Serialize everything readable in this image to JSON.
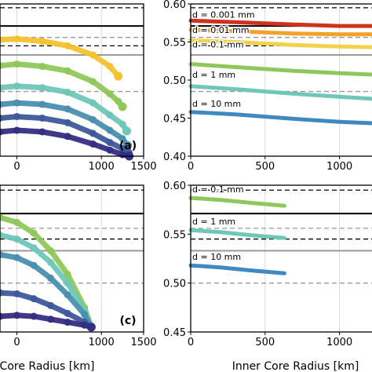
{
  "chart_data": [
    {
      "panel": "a",
      "type": "scatter",
      "panel_label": "(a)",
      "xlabel": "",
      "ylabel": "",
      "xlim": [
        -200,
        1500
      ],
      "ylim": [
        0.4,
        0.6
      ],
      "xticks": [
        "0",
        "1000",
        "1500"
      ],
      "yticks": [],
      "grid": true,
      "ref_lines": [
        {
          "y": 0.595,
          "style": "dashed",
          "color": "#000000"
        },
        {
          "y": 0.571,
          "style": "solid",
          "color": "#000000"
        },
        {
          "y": 0.556,
          "style": "dashed",
          "color": "#999999"
        },
        {
          "y": 0.545,
          "style": "dashed",
          "color": "#000000"
        },
        {
          "y": 0.533,
          "style": "solid",
          "color": "#999999"
        },
        {
          "y": 0.485,
          "style": "dashed",
          "color": "#999999"
        }
      ],
      "series": [
        {
          "color": "#f2c230",
          "points": [
            [
              -200,
              0.553
            ],
            [
              0,
              0.554
            ],
            [
              300,
              0.551
            ],
            [
              600,
              0.545
            ],
            [
              900,
              0.533
            ],
            [
              1100,
              0.518
            ],
            [
              1200,
              0.505
            ]
          ]
        },
        {
          "color": "#8fc85a",
          "points": [
            [
              -200,
              0.519
            ],
            [
              0,
              0.521
            ],
            [
              300,
              0.518
            ],
            [
              600,
              0.512
            ],
            [
              900,
              0.498
            ],
            [
              1100,
              0.482
            ],
            [
              1200,
              0.472
            ],
            [
              1250,
              0.465
            ]
          ]
        },
        {
          "color": "#6fc7b8",
          "points": [
            [
              -200,
              0.49
            ],
            [
              0,
              0.492
            ],
            [
              300,
              0.49
            ],
            [
              600,
              0.484
            ],
            [
              900,
              0.47
            ],
            [
              1100,
              0.454
            ],
            [
              1250,
              0.442
            ],
            [
              1300,
              0.433
            ]
          ]
        },
        {
          "color": "#4a8fb0",
          "points": [
            [
              -200,
              0.468
            ],
            [
              0,
              0.47
            ],
            [
              300,
              0.468
            ],
            [
              600,
              0.462
            ],
            [
              900,
              0.448
            ],
            [
              1100,
              0.434
            ],
            [
              1250,
              0.423
            ],
            [
              1310,
              0.414
            ]
          ]
        },
        {
          "color": "#3e5a9c",
          "points": [
            [
              -200,
              0.45
            ],
            [
              0,
              0.452
            ],
            [
              300,
              0.45
            ],
            [
              600,
              0.444
            ],
            [
              900,
              0.43
            ],
            [
              1100,
              0.418
            ],
            [
              1250,
              0.41
            ],
            [
              1320,
              0.404
            ]
          ]
        },
        {
          "color": "#352e82",
          "points": [
            [
              -200,
              0.432
            ],
            [
              0,
              0.434
            ],
            [
              300,
              0.432
            ],
            [
              600,
              0.426
            ],
            [
              900,
              0.416
            ],
            [
              1100,
              0.408
            ],
            [
              1250,
              0.402
            ],
            [
              1330,
              0.4
            ]
          ]
        }
      ]
    },
    {
      "panel": "b",
      "type": "line",
      "panel_label": "",
      "xlabel": "",
      "ylabel": "",
      "xlim": [
        0,
        1250
      ],
      "ylim": [
        0.4,
        0.6
      ],
      "xticks": [
        "0",
        "500",
        "1000"
      ],
      "yticks": [
        "0.60",
        "0.55",
        "0.50",
        "0.45",
        "0.40"
      ],
      "grid": true,
      "ref_lines": [
        {
          "y": 0.595,
          "style": "dashed",
          "color": "#000000"
        },
        {
          "y": 0.571,
          "style": "solid",
          "color": "#000000"
        },
        {
          "y": 0.556,
          "style": "dashed",
          "color": "#999999"
        },
        {
          "y": 0.545,
          "style": "dashed",
          "color": "#000000"
        },
        {
          "y": 0.533,
          "style": "solid",
          "color": "#999999"
        },
        {
          "y": 0.485,
          "style": "dashed",
          "color": "#999999"
        }
      ],
      "annotations": [
        "d = 0.001 mm",
        "d = 0.01 mm",
        "d = 0.1 mm",
        "d = 1 mm",
        "d = 10 mm"
      ],
      "series": [
        {
          "color": "#d0321e",
          "points": [
            [
              0,
              0.578
            ],
            [
              300,
              0.576
            ],
            [
              700,
              0.573
            ],
            [
              1000,
              0.571
            ],
            [
              1250,
              0.571
            ]
          ]
        },
        {
          "color": "#f0a22a",
          "points": [
            [
              0,
              0.566
            ],
            [
              300,
              0.564
            ],
            [
              700,
              0.561
            ],
            [
              1000,
              0.56
            ],
            [
              1250,
              0.56
            ]
          ]
        },
        {
          "color": "#f2d24a",
          "points": [
            [
              0,
              0.552
            ],
            [
              300,
              0.55
            ],
            [
              700,
              0.546
            ],
            [
              1000,
              0.544
            ],
            [
              1250,
              0.543
            ]
          ]
        },
        {
          "color": "#8fc85a",
          "points": [
            [
              0,
              0.521
            ],
            [
              300,
              0.517
            ],
            [
              700,
              0.512
            ],
            [
              1000,
              0.509
            ],
            [
              1250,
              0.507
            ]
          ]
        },
        {
          "color": "#6fc7b8",
          "points": [
            [
              0,
              0.492
            ],
            [
              300,
              0.488
            ],
            [
              700,
              0.482
            ],
            [
              1000,
              0.478
            ],
            [
              1250,
              0.475
            ]
          ]
        },
        {
          "color": "#3e8ac0",
          "points": [
            [
              0,
              0.458
            ],
            [
              300,
              0.455
            ],
            [
              700,
              0.449
            ],
            [
              1000,
              0.445
            ],
            [
              1250,
              0.443
            ]
          ]
        }
      ]
    },
    {
      "panel": "c",
      "type": "scatter",
      "panel_label": "(c)",
      "xlabel": "Core Radius [km]",
      "ylabel": "",
      "xlim": [
        -200,
        1500
      ],
      "ylim": [
        0.45,
        0.6
      ],
      "xticks": [
        "0",
        "1000",
        "1500"
      ],
      "yticks": [],
      "grid": true,
      "ref_lines": [
        {
          "y": 0.595,
          "style": "dashed",
          "color": "#000000"
        },
        {
          "y": 0.571,
          "style": "solid",
          "color": "#000000"
        },
        {
          "y": 0.556,
          "style": "dashed",
          "color": "#999999"
        },
        {
          "y": 0.545,
          "style": "dashed",
          "color": "#000000"
        },
        {
          "y": 0.533,
          "style": "solid",
          "color": "#999999"
        },
        {
          "y": 0.5,
          "style": "dashed",
          "color": "#999999"
        }
      ],
      "series": [
        {
          "color": "#8fc85a",
          "points": [
            [
              -200,
              0.567
            ],
            [
              0,
              0.562
            ],
            [
              200,
              0.551
            ],
            [
              400,
              0.533
            ],
            [
              600,
              0.509
            ],
            [
              800,
              0.475
            ],
            [
              880,
              0.455
            ]
          ]
        },
        {
          "color": "#6fc7b8",
          "points": [
            [
              -200,
              0.549
            ],
            [
              0,
              0.545
            ],
            [
              200,
              0.536
            ],
            [
              400,
              0.521
            ],
            [
              600,
              0.5
            ],
            [
              800,
              0.472
            ],
            [
              880,
              0.455
            ]
          ]
        },
        {
          "color": "#4a8fb0",
          "points": [
            [
              -200,
              0.529
            ],
            [
              0,
              0.526
            ],
            [
              200,
              0.518
            ],
            [
              400,
              0.505
            ],
            [
              600,
              0.488
            ],
            [
              800,
              0.468
            ],
            [
              880,
              0.455
            ]
          ]
        },
        {
          "color": "#3e5a9c",
          "points": [
            [
              -200,
              0.49
            ],
            [
              0,
              0.489
            ],
            [
              200,
              0.484
            ],
            [
              400,
              0.477
            ],
            [
              600,
              0.469
            ],
            [
              800,
              0.46
            ],
            [
              880,
              0.455
            ]
          ]
        },
        {
          "color": "#352e82",
          "points": [
            [
              -200,
              0.466
            ],
            [
              0,
              0.467
            ],
            [
              200,
              0.466
            ],
            [
              400,
              0.463
            ],
            [
              600,
              0.46
            ],
            [
              800,
              0.457
            ],
            [
              880,
              0.455
            ]
          ]
        }
      ]
    },
    {
      "panel": "d",
      "type": "line",
      "panel_label": "",
      "xlabel": "Inner Core Radius [km]",
      "ylabel": "",
      "xlim": [
        0,
        1250
      ],
      "ylim": [
        0.45,
        0.6
      ],
      "xticks": [
        "0",
        "500",
        "1000"
      ],
      "yticks": [
        "0.60",
        "0.55",
        "0.50",
        "0.45"
      ],
      "grid": true,
      "ref_lines": [
        {
          "y": 0.595,
          "style": "dashed",
          "color": "#000000"
        },
        {
          "y": 0.571,
          "style": "solid",
          "color": "#000000"
        },
        {
          "y": 0.556,
          "style": "dashed",
          "color": "#999999"
        },
        {
          "y": 0.545,
          "style": "dashed",
          "color": "#000000"
        },
        {
          "y": 0.533,
          "style": "solid",
          "color": "#999999"
        },
        {
          "y": 0.5,
          "style": "dashed",
          "color": "#999999"
        }
      ],
      "annotations": [
        "d = 0.1 mm",
        "d = 1 mm",
        "d = 10 mm"
      ],
      "series": [
        {
          "color": "#8fc85a",
          "points": [
            [
              0,
              0.587
            ],
            [
              200,
              0.585
            ],
            [
              400,
              0.582
            ],
            [
              630,
              0.579
            ]
          ]
        },
        {
          "color": "#6fc7b8",
          "points": [
            [
              0,
              0.554
            ],
            [
              200,
              0.552
            ],
            [
              400,
              0.549
            ],
            [
              630,
              0.546
            ]
          ]
        },
        {
          "color": "#3e8ac0",
          "points": [
            [
              0,
              0.518
            ],
            [
              200,
              0.516
            ],
            [
              400,
              0.513
            ],
            [
              630,
              0.51
            ]
          ]
        }
      ]
    }
  ]
}
